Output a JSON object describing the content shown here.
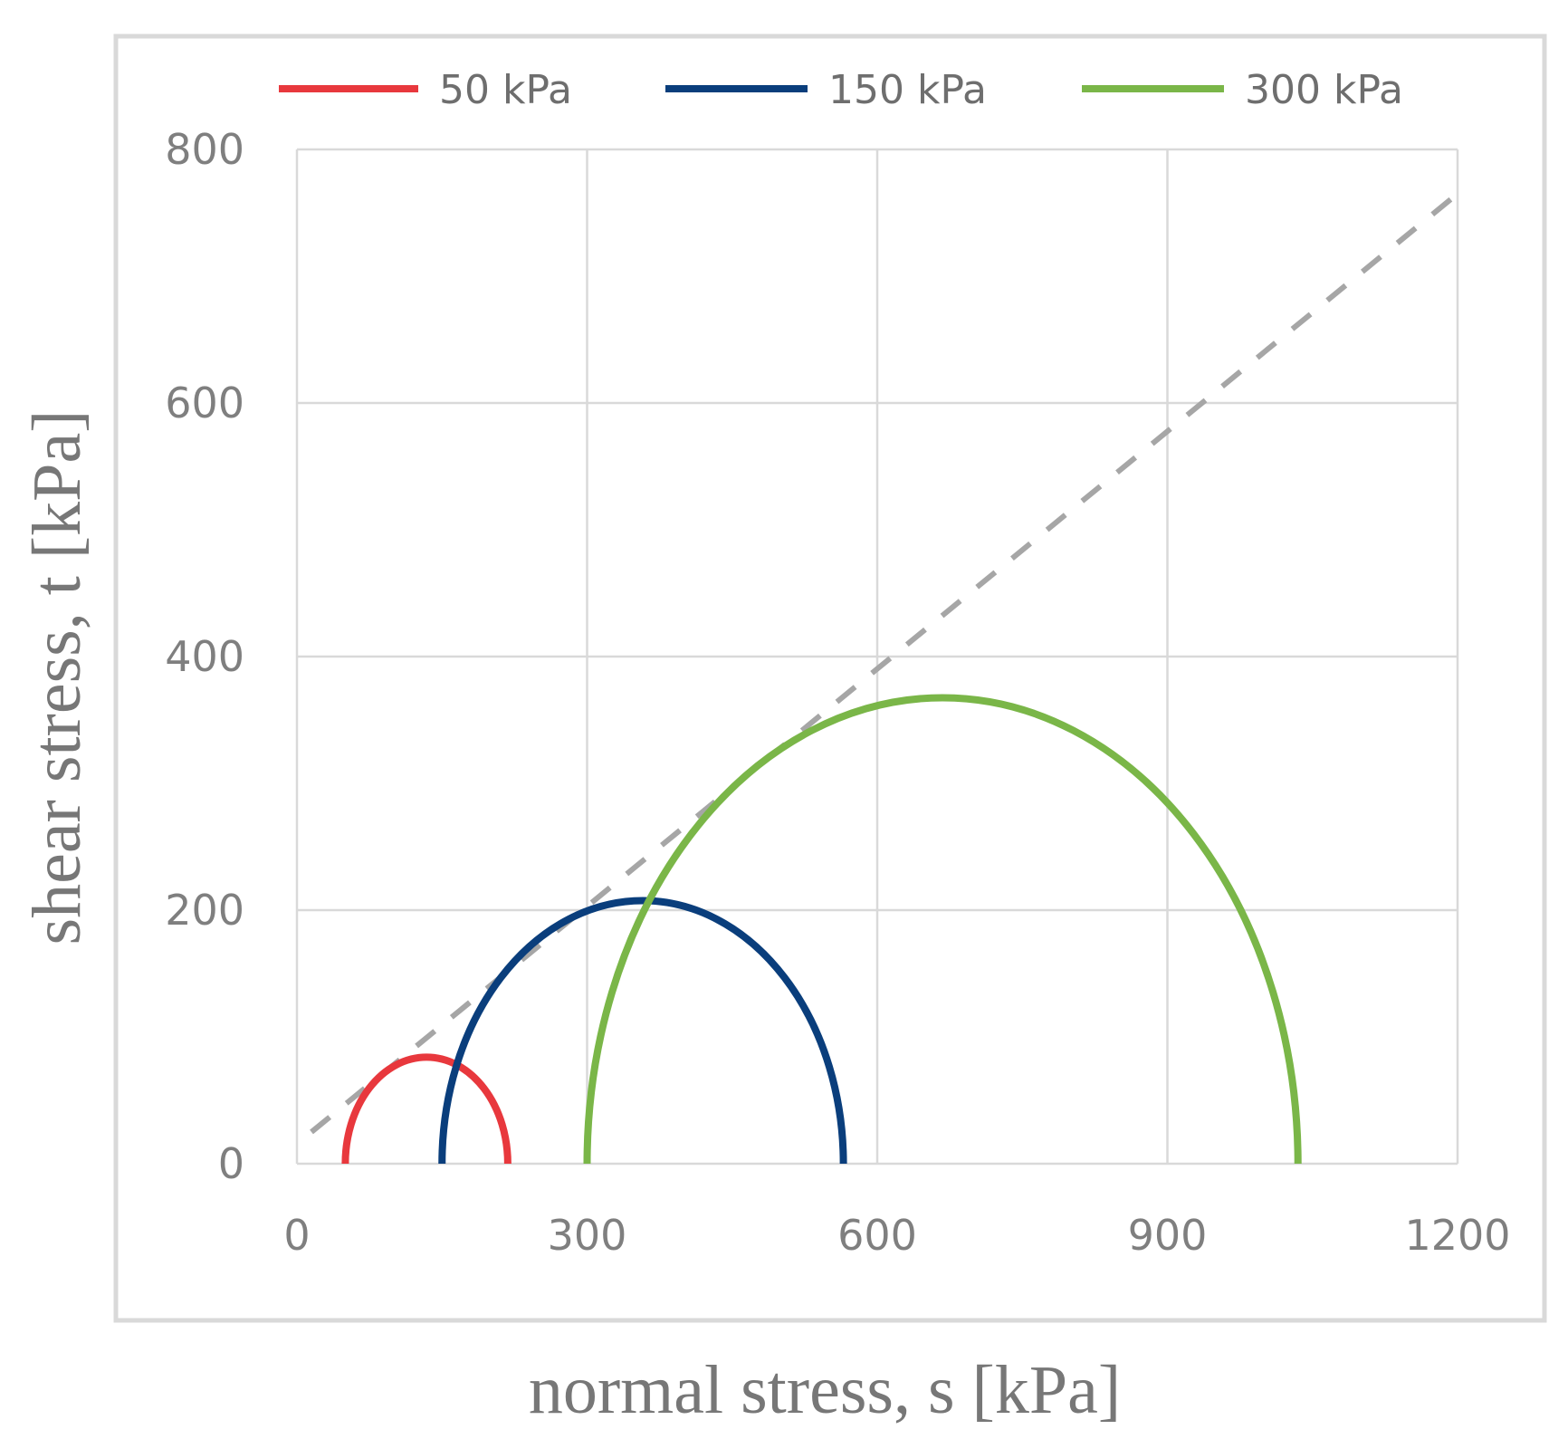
{
  "chart_data": {
    "type": "line",
    "title": "",
    "xlabel": "normal stress, s [kPa]",
    "ylabel": "shear stress, t [kPa]",
    "xlim": [
      0,
      1200
    ],
    "ylim": [
      0,
      800
    ],
    "xticks": [
      0,
      300,
      600,
      900,
      1200
    ],
    "yticks": [
      0,
      200,
      400,
      600,
      800
    ],
    "xtick_labels": [
      "0",
      "300",
      "600",
      "900",
      "1200"
    ],
    "ytick_labels": [
      "0",
      "200",
      "400",
      "600",
      "800"
    ],
    "grid": true,
    "legend_position": "top",
    "series": [
      {
        "name": "50 kPa",
        "color": "#e8383d",
        "kind": "mohr-circle",
        "sigma3": 50,
        "sigma1": 218
      },
      {
        "name": "150 kPa",
        "color": "#0a3e7c",
        "kind": "mohr-circle",
        "sigma3": 150,
        "sigma1": 565
      },
      {
        "name": "300 kPa",
        "color": "#7ab648",
        "kind": "mohr-circle",
        "sigma3": 300,
        "sigma1": 1035
      }
    ],
    "envelope": {
      "color": "#a6a6a6",
      "style": "dashed",
      "x": [
        15,
        1200
      ],
      "y": [
        25,
        765
      ]
    }
  }
}
